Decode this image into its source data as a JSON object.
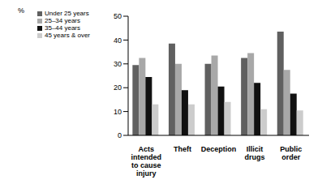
{
  "chart_data": {
    "type": "bar",
    "ylabel": "%",
    "categories": [
      "Acts intended to cause injury",
      "Theft",
      "Deception",
      "Illicit drugs",
      "Public order"
    ],
    "series": [
      {
        "name": "Under 25 years",
        "color": "#606060",
        "values": [
          29.5,
          38.5,
          30,
          32.5,
          43.5
        ]
      },
      {
        "name": "25–34 years",
        "color": "#a8a8a8",
        "values": [
          32.5,
          30,
          33.5,
          34.5,
          27.5
        ]
      },
      {
        "name": "35–44 years",
        "color": "#111111",
        "values": [
          24.5,
          19,
          20.5,
          22,
          17.5
        ]
      },
      {
        "name": "45 years & over",
        "color": "#cccccc",
        "values": [
          13,
          13,
          14,
          11,
          10.5
        ]
      }
    ],
    "ylim": [
      0,
      50
    ],
    "yticks": [
      0,
      10,
      20,
      30,
      40,
      50
    ],
    "grid": false,
    "legend": "upper left"
  }
}
